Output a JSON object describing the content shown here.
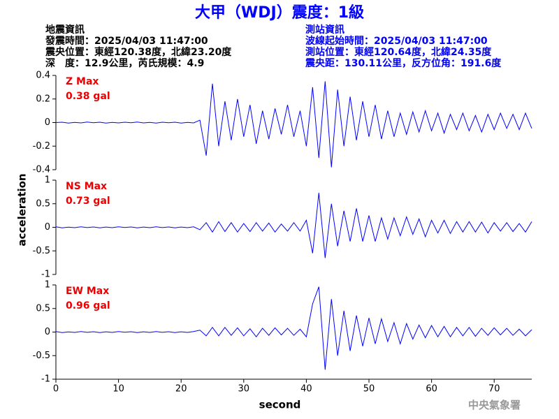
{
  "header": {
    "title": "大甲（WDJ）震度：1級",
    "left": [
      "地震資訊",
      "發震時間：2025/04/03 11:47:00",
      "震央位置：東經120.38度，北緯23.20度",
      "深　度：12.9公里，芮氏規模：4.9"
    ],
    "right": [
      "測站資訊",
      "波線起始時間：2025/04/03 11:47:00",
      "測站位置：東經120.64度，北緯24.35度",
      "震央距：130.11公里，反方位角：191.6度"
    ]
  },
  "footer": {
    "credit": "中央氣象署"
  },
  "chart_data": [
    {
      "type": "line",
      "annotation": [
        "Z Max",
        "0.38 gal"
      ],
      "color": "#0000ff",
      "xlim": [
        0,
        76
      ],
      "ylim": [
        -0.4,
        0.4
      ],
      "yticks": [
        0.4,
        0.2,
        0,
        -0.2,
        -0.4
      ],
      "x": [
        0,
        1,
        2,
        3,
        4,
        5,
        6,
        7,
        8,
        9,
        10,
        11,
        12,
        13,
        14,
        15,
        16,
        17,
        18,
        19,
        20,
        21,
        22,
        23,
        24,
        25,
        26,
        27,
        28,
        29,
        30,
        31,
        32,
        33,
        34,
        35,
        36,
        37,
        38,
        39,
        40,
        41,
        42,
        43,
        44,
        45,
        46,
        47,
        48,
        49,
        50,
        51,
        52,
        53,
        54,
        55,
        56,
        57,
        58,
        59,
        60,
        61,
        62,
        63,
        64,
        65,
        66,
        67,
        68,
        69,
        70,
        71,
        72,
        73,
        74,
        75,
        76
      ],
      "values": [
        0,
        0.003,
        -0.004,
        0.002,
        -0.003,
        0.004,
        -0.002,
        0.003,
        -0.004,
        0.002,
        -0.003,
        0.003,
        -0.002,
        0.004,
        -0.003,
        0.002,
        -0.004,
        0.003,
        -0.002,
        0.003,
        -0.004,
        0.002,
        -0.003,
        0.02,
        -0.28,
        0.33,
        -0.2,
        0.18,
        -0.15,
        0.2,
        -0.12,
        0.15,
        -0.18,
        0.1,
        -0.14,
        0.12,
        -0.1,
        0.15,
        -0.12,
        0.1,
        -0.2,
        0.3,
        -0.3,
        0.35,
        -0.38,
        0.28,
        -0.2,
        0.22,
        -0.15,
        0.18,
        -0.12,
        0.15,
        -0.14,
        0.1,
        -0.12,
        0.08,
        -0.1,
        0.09,
        -0.08,
        0.1,
        -0.07,
        0.08,
        -0.09,
        0.07,
        -0.06,
        0.08,
        -0.07,
        0.06,
        -0.08,
        0.07,
        -0.06,
        0.08,
        -0.05,
        0.07,
        -0.06,
        0.08,
        -0.05
      ]
    },
    {
      "type": "line",
      "annotation": [
        "NS Max",
        "0.73 gal"
      ],
      "ylabel": "acceleration",
      "color": "#0000ff",
      "xlim": [
        0,
        76
      ],
      "ylim": [
        -1,
        1
      ],
      "yticks": [
        1,
        0.5,
        0,
        -0.5,
        -1
      ],
      "x": [
        0,
        1,
        2,
        3,
        4,
        5,
        6,
        7,
        8,
        9,
        10,
        11,
        12,
        13,
        14,
        15,
        16,
        17,
        18,
        19,
        20,
        21,
        22,
        23,
        24,
        25,
        26,
        27,
        28,
        29,
        30,
        31,
        32,
        33,
        34,
        35,
        36,
        37,
        38,
        39,
        40,
        41,
        42,
        43,
        44,
        45,
        46,
        47,
        48,
        49,
        50,
        51,
        52,
        53,
        54,
        55,
        56,
        57,
        58,
        59,
        60,
        61,
        62,
        63,
        64,
        65,
        66,
        67,
        68,
        69,
        70,
        71,
        72,
        73,
        74,
        75,
        76
      ],
      "values": [
        0.01,
        -0.01,
        0.005,
        -0.008,
        0.01,
        -0.006,
        0.008,
        -0.01,
        0.006,
        -0.008,
        0.01,
        -0.005,
        0.008,
        -0.01,
        0.006,
        -0.008,
        0.01,
        -0.006,
        0.008,
        -0.01,
        0.006,
        -0.008,
        0.01,
        -0.05,
        0.1,
        -0.1,
        0.12,
        -0.09,
        0.1,
        -0.1,
        0.08,
        -0.09,
        0.1,
        -0.08,
        0.09,
        -0.1,
        0.07,
        -0.08,
        0.1,
        -0.08,
        0.15,
        -0.55,
        0.73,
        -0.65,
        0.5,
        -0.4,
        0.35,
        -0.3,
        0.4,
        -0.3,
        0.25,
        -0.3,
        0.2,
        -0.25,
        0.2,
        -0.18,
        0.22,
        -0.15,
        0.18,
        -0.2,
        0.15,
        -0.12,
        0.15,
        -0.13,
        0.12,
        -0.1,
        0.12,
        -0.1,
        0.11,
        -0.12,
        0.1,
        -0.08,
        0.1,
        -0.09,
        0.08,
        -0.1,
        0.12
      ]
    },
    {
      "type": "line",
      "annotation": [
        "EW Max",
        "0.96 gal"
      ],
      "xlabel": "second",
      "color": "#0000ff",
      "xlim": [
        0,
        76
      ],
      "ylim": [
        -1,
        1
      ],
      "yticks": [
        1,
        0.5,
        0,
        -0.5,
        -1
      ],
      "xticks": [
        0,
        10,
        20,
        30,
        40,
        50,
        60,
        70
      ],
      "x": [
        0,
        1,
        2,
        3,
        4,
        5,
        6,
        7,
        8,
        9,
        10,
        11,
        12,
        13,
        14,
        15,
        16,
        17,
        18,
        19,
        20,
        21,
        22,
        23,
        24,
        25,
        26,
        27,
        28,
        29,
        30,
        31,
        32,
        33,
        34,
        35,
        36,
        37,
        38,
        39,
        40,
        41,
        42,
        43,
        44,
        45,
        46,
        47,
        48,
        49,
        50,
        51,
        52,
        53,
        54,
        55,
        56,
        57,
        58,
        59,
        60,
        61,
        62,
        63,
        64,
        65,
        66,
        67,
        68,
        69,
        70,
        71,
        72,
        73,
        74,
        75,
        76
      ],
      "values": [
        0.01,
        -0.01,
        0.005,
        -0.008,
        0.01,
        -0.006,
        0.008,
        -0.01,
        0.006,
        -0.008,
        0.01,
        -0.005,
        0.008,
        -0.01,
        0.006,
        -0.008,
        0.01,
        -0.006,
        0.008,
        -0.01,
        0.006,
        -0.008,
        0.01,
        0.04,
        -0.08,
        0.1,
        -0.08,
        0.1,
        -0.07,
        0.09,
        -0.08,
        0.07,
        -0.1,
        0.08,
        -0.07,
        0.09,
        -0.06,
        0.08,
        -0.07,
        0.06,
        -0.1,
        0.6,
        0.96,
        -0.8,
        0.7,
        -0.5,
        0.45,
        -0.4,
        0.35,
        -0.3,
        0.3,
        -0.25,
        0.28,
        -0.2,
        0.2,
        -0.25,
        0.18,
        -0.15,
        0.15,
        -0.12,
        0.14,
        -0.1,
        0.12,
        -0.1,
        0.1,
        -0.08,
        0.1,
        -0.09,
        0.08,
        -0.07,
        0.09,
        -0.06,
        0.08,
        -0.07,
        0.06,
        -0.08,
        0.05
      ]
    }
  ]
}
